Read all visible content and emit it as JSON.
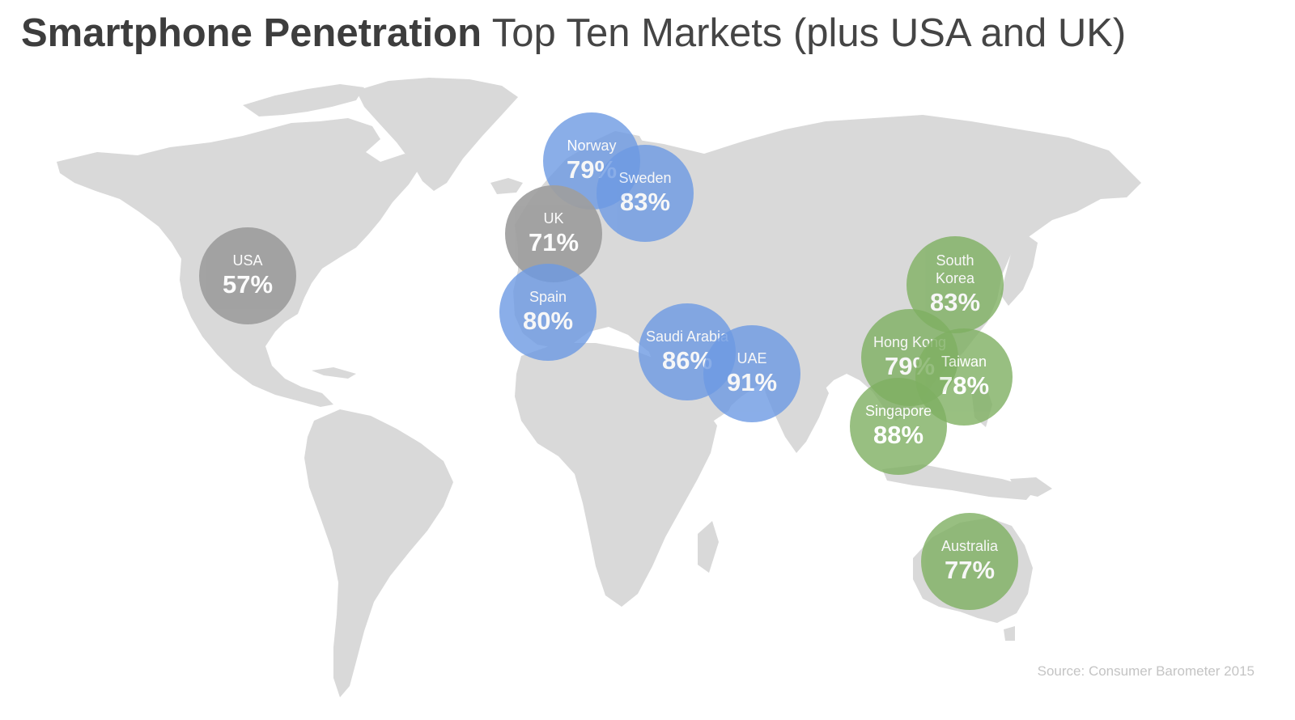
{
  "title": {
    "bold": "Smartphone Penetration",
    "light": "Top Ten Markets (plus USA and UK)"
  },
  "colors": {
    "land": "#d9d9d9",
    "europe_middle_east": "#6d9ae3",
    "asia_pacific": "#7fb062",
    "reference": "#9e9e9e"
  },
  "markets": [
    {
      "id": "norway",
      "name": "Norway",
      "value": "79%",
      "group": "europe_middle_east"
    },
    {
      "id": "sweden",
      "name": "Sweden",
      "value": "83%",
      "group": "europe_middle_east"
    },
    {
      "id": "uk",
      "name": "UK",
      "value": "71%",
      "group": "reference"
    },
    {
      "id": "usa",
      "name": "USA",
      "value": "57%",
      "group": "reference"
    },
    {
      "id": "spain",
      "name": "Spain",
      "value": "80%",
      "group": "europe_middle_east"
    },
    {
      "id": "saudi-arabia",
      "name": "Saudi Arabia",
      "value": "86%",
      "group": "europe_middle_east"
    },
    {
      "id": "uae",
      "name": "UAE",
      "value": "91%",
      "group": "europe_middle_east"
    },
    {
      "id": "south-korea",
      "name": "South\nKorea",
      "value": "83%",
      "group": "asia_pacific"
    },
    {
      "id": "hong-kong",
      "name": "Hong Kong",
      "value": "79%",
      "group": "asia_pacific"
    },
    {
      "id": "taiwan",
      "name": "Taiwan",
      "value": "78%",
      "group": "asia_pacific"
    },
    {
      "id": "singapore",
      "name": "Singapore",
      "value": "88%",
      "group": "asia_pacific"
    },
    {
      "id": "australia",
      "name": "Australia",
      "value": "77%",
      "group": "asia_pacific"
    }
  ],
  "source": "Source: Consumer Barometer 2015"
}
